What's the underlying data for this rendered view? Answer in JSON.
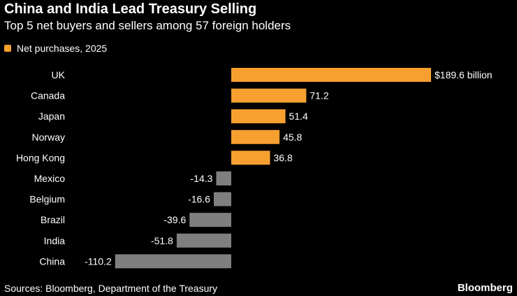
{
  "header": {
    "title": "China and India Lead Treasury Selling",
    "subtitle": "Top 5 net buyers and sellers among 57 foreign holders"
  },
  "legend": {
    "label": "Net purchases, 2025"
  },
  "colors": {
    "positive": "#f7a030",
    "negative": "#7f7f7f",
    "background": "#000000",
    "text": "#ffffff"
  },
  "chart_data": {
    "type": "bar",
    "orientation": "horizontal",
    "title": "China and India Lead Treasury Selling",
    "subtitle": "Top 5 net buyers and sellers among 57 foreign holders",
    "series": [
      {
        "name": "Net purchases, 2025",
        "values": [
          189.6,
          71.2,
          51.4,
          45.8,
          36.8,
          -14.3,
          -16.6,
          -39.6,
          -51.8,
          -110.2
        ]
      }
    ],
    "categories": [
      "UK",
      "Canada",
      "Japan",
      "Norway",
      "Hong Kong",
      "Mexico",
      "Belgium",
      "Brazil",
      "India",
      "China"
    ],
    "value_labels": [
      "$189.6 billion",
      "71.2",
      "51.4",
      "45.8",
      "36.8",
      "-14.3",
      "-16.6",
      "-39.6",
      "-51.8",
      "-110.2"
    ],
    "xlim": [
      -110.2,
      189.6
    ],
    "unit": "billion USD",
    "legend_position": "top-left",
    "grid": false
  },
  "footer": {
    "source": "Sources: Bloomberg, Department of the Treasury",
    "brand": "Bloomberg"
  }
}
